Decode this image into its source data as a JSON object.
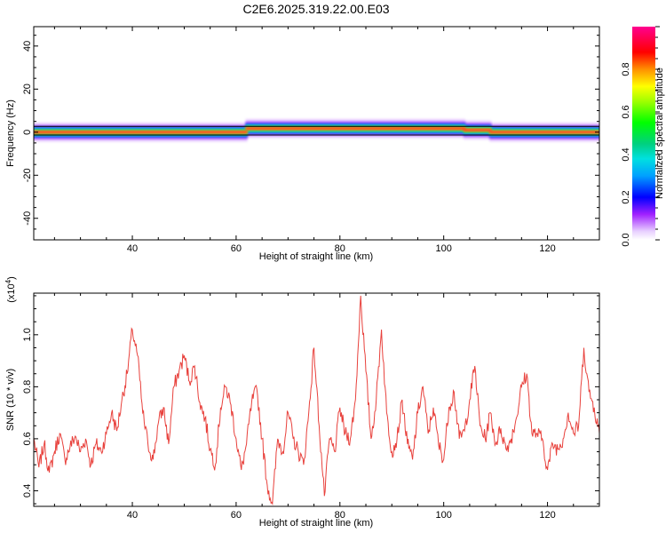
{
  "title": "C2E6.2025.319.22.00.E03",
  "chart_data": [
    {
      "type": "heatmap",
      "xlabel": "Height of straight line (km)",
      "ylabel": "Frequency (Hz)",
      "xlim": [
        21,
        130
      ],
      "ylim": [
        -50,
        49
      ],
      "xticks": [
        40,
        60,
        80,
        100,
        120
      ],
      "yticks": [
        40,
        20,
        0,
        -20,
        -40
      ],
      "colorbar": {
        "label": "Normalized spectral amplitude",
        "range": [
          0,
          1
        ],
        "ticks": [
          "0.0",
          "0.2",
          "0.4",
          "0.6",
          "0.8"
        ]
      },
      "ridge": {
        "segments": [
          {
            "x": [
              21,
              62
            ],
            "frequency": 0.0
          },
          {
            "x": [
              62,
              104
            ],
            "frequency": 1.7
          },
          {
            "x": [
              104,
              109
            ],
            "frequency": 1.0
          },
          {
            "x": [
              109,
              130
            ],
            "frequency": 0.0
          }
        ]
      },
      "reference_lines": [
        {
          "frequency": 2.7
        },
        {
          "frequency": -1.3
        }
      ]
    },
    {
      "type": "line",
      "xlabel": "Height of straight line (km)",
      "ylabel": "SNR (10 * v/v)",
      "multiplier": "(x10",
      "multiplier_exp": "4",
      "xlim": [
        21,
        130
      ],
      "ylim": [
        0.34,
        1.16
      ],
      "xticks": [
        40,
        60,
        80,
        100,
        120
      ],
      "yticks": [
        "0.4",
        "0.6",
        "0.8",
        "1.0"
      ],
      "series": [
        {
          "color": "#e8413c",
          "x": [
            21,
            22,
            23,
            24,
            25,
            26,
            27,
            28,
            29,
            30,
            31,
            32,
            33,
            34,
            35,
            36,
            37,
            38,
            39,
            40,
            41,
            42,
            43,
            44,
            45,
            46,
            47,
            48,
            49,
            50,
            51,
            52,
            53,
            54,
            55,
            56,
            57,
            58,
            59,
            60,
            61,
            62,
            63,
            64,
            65,
            66,
            67,
            68,
            69,
            70,
            71,
            72,
            73,
            74,
            75,
            76,
            77,
            78,
            79,
            80,
            81,
            82,
            83,
            84,
            85,
            86,
            87,
            88,
            89,
            90,
            91,
            92,
            93,
            94,
            95,
            96,
            97,
            98,
            99,
            100,
            101,
            102,
            103,
            104,
            105,
            106,
            107,
            108,
            109,
            110,
            111,
            112,
            113,
            114,
            115,
            116,
            117,
            118,
            119,
            120,
            121,
            122,
            123,
            124,
            125,
            126,
            127,
            128,
            129,
            130
          ],
          "y": [
            0.6,
            0.49,
            0.58,
            0.47,
            0.55,
            0.62,
            0.52,
            0.57,
            0.61,
            0.55,
            0.6,
            0.5,
            0.58,
            0.55,
            0.62,
            0.7,
            0.63,
            0.75,
            0.85,
            1.02,
            0.92,
            0.7,
            0.58,
            0.52,
            0.66,
            0.72,
            0.58,
            0.8,
            0.86,
            0.92,
            0.82,
            0.88,
            0.74,
            0.68,
            0.56,
            0.5,
            0.72,
            0.8,
            0.73,
            0.6,
            0.48,
            0.58,
            0.74,
            0.79,
            0.6,
            0.42,
            0.35,
            0.6,
            0.55,
            0.7,
            0.6,
            0.55,
            0.5,
            0.7,
            0.95,
            0.65,
            0.38,
            0.6,
            0.55,
            0.72,
            0.62,
            0.6,
            0.75,
            1.15,
            0.86,
            0.6,
            0.75,
            1.02,
            0.7,
            0.55,
            0.6,
            0.75,
            0.58,
            0.52,
            0.7,
            0.8,
            0.62,
            0.72,
            0.58,
            0.52,
            0.72,
            0.78,
            0.6,
            0.63,
            0.75,
            0.88,
            0.65,
            0.6,
            0.7,
            0.58,
            0.64,
            0.56,
            0.6,
            0.68,
            0.8,
            0.85,
            0.62,
            0.62,
            0.6,
            0.48,
            0.58,
            0.56,
            0.6,
            0.7,
            0.62,
            0.65,
            0.95,
            0.78,
            0.72,
            0.62
          ]
        }
      ]
    }
  ]
}
